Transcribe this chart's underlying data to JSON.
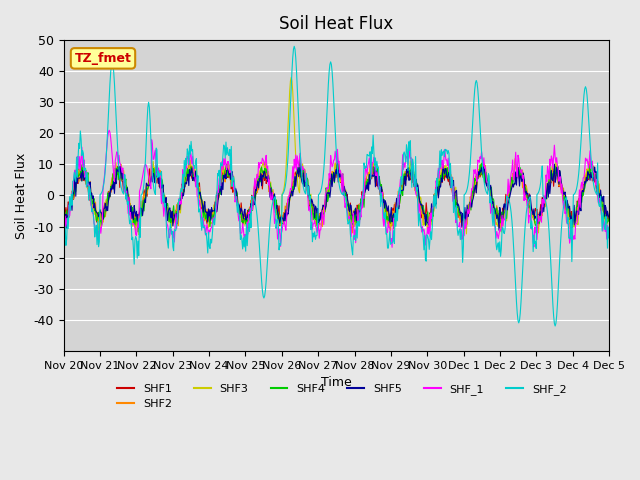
{
  "title": "Soil Heat Flux",
  "xlabel": "Time",
  "ylabel": "Soil Heat Flux",
  "ylim": [
    -50,
    50
  ],
  "yticks": [
    -40,
    -30,
    -20,
    -10,
    0,
    10,
    20,
    30,
    40,
    50
  ],
  "series_colors": {
    "SHF1": "#cc0000",
    "SHF2": "#ff8800",
    "SHF3": "#cccc00",
    "SHF4": "#00cc00",
    "SHF5": "#000099",
    "SHF_1": "#ff00ff",
    "SHF_2": "#00cccc"
  },
  "annotation_text": "TZ_fmet",
  "annotation_bg": "#ffff99",
  "annotation_border": "#cc8800",
  "background_color": "#e8e8e8",
  "plot_bg": "#d4d4d4",
  "n_days": 15,
  "points_per_day": 48,
  "xtick_labels": [
    "Nov 20",
    "Nov 21",
    "Nov 22",
    "Nov 23",
    "Nov 24",
    "Nov 25",
    "Nov 26",
    "Nov 27",
    "Nov 28",
    "Nov 29",
    "Nov 30",
    "Dec 1",
    "Dec 2",
    "Dec 3",
    "Dec 4",
    "Dec 5"
  ]
}
